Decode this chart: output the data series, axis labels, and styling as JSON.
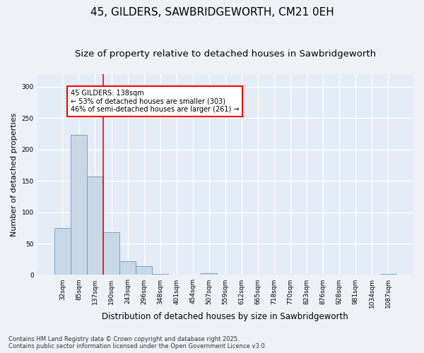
{
  "title1": "45, GILDERS, SAWBRIDGEWORTH, CM21 0EH",
  "title2": "Size of property relative to detached houses in Sawbridgeworth",
  "xlabel": "Distribution of detached houses by size in Sawbridgeworth",
  "ylabel": "Number of detached properties",
  "bar_labels": [
    "32sqm",
    "85sqm",
    "137sqm",
    "190sqm",
    "243sqm",
    "296sqm",
    "348sqm",
    "401sqm",
    "454sqm",
    "507sqm",
    "559sqm",
    "612sqm",
    "665sqm",
    "718sqm",
    "770sqm",
    "823sqm",
    "876sqm",
    "928sqm",
    "981sqm",
    "1034sqm",
    "1087sqm"
  ],
  "bar_values": [
    75,
    223,
    157,
    68,
    22,
    14,
    2,
    0,
    0,
    3,
    0,
    0,
    0,
    0,
    0,
    0,
    0,
    0,
    0,
    0,
    2
  ],
  "bar_color": "#c8d8e8",
  "bar_edge_color": "#6699bb",
  "red_line_index": 2,
  "annotation_text": "45 GILDERS: 138sqm\n← 53% of detached houses are smaller (303)\n46% of semi-detached houses are larger (261) →",
  "annotation_box_color": "white",
  "annotation_box_edge_color": "red",
  "ylim": [
    0,
    320
  ],
  "yticks": [
    0,
    50,
    100,
    150,
    200,
    250,
    300
  ],
  "footnote": "Contains HM Land Registry data © Crown copyright and database right 2025.\nContains public sector information licensed under the Open Government Licence v3.0.",
  "bg_color": "#eef2f7",
  "plot_bg_color": "#e4edf6",
  "grid_color": "#ffffff",
  "title_fontsize": 11,
  "subtitle_fontsize": 9.5,
  "ylabel_fontsize": 8,
  "xlabel_fontsize": 8.5,
  "tick_fontsize": 6.5,
  "annotation_fontsize": 7,
  "footnote_fontsize": 6
}
